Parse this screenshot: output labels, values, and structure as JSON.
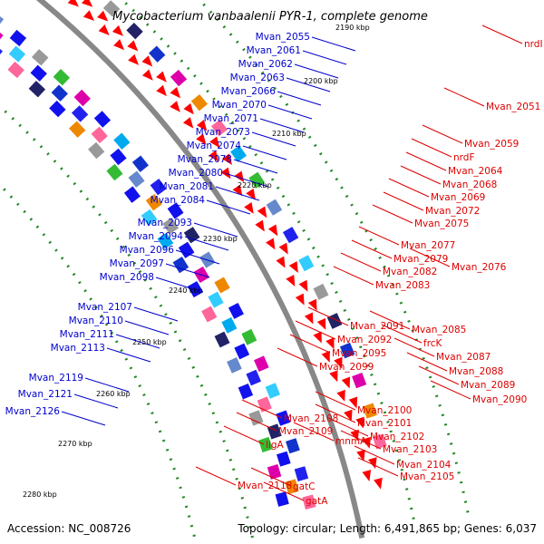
{
  "title": "Mycobacterium vanbaalenii PYR-1, complete genome",
  "footer": {
    "accession": "Accession: NC_008726",
    "summary": "Topology: circular; Length: 6,491,865 bp; Genes: 6,037"
  },
  "colors": {
    "left_label": "#0000cc",
    "right_label": "#dd0000",
    "backbone": "#888888",
    "dots": "#228822"
  },
  "ticks": [
    "2190 kbp",
    "2200 kbp",
    "2210 kbp",
    "2220 kbp",
    "2230 kbp",
    "2240 kbp",
    "2250 kbp",
    "2260 kbp",
    "2270 kbp",
    "2280 kbp"
  ],
  "left_labels": [
    "Mvan_2055",
    "Mvan_2061",
    "Mvan_2062",
    "Mvan_2063",
    "Mvan_2066",
    "Mvan_2070",
    "Mvan_2071",
    "Mvan_2073",
    "Mvan_2074",
    "Mvan_2078",
    "Mvan_2080",
    "Mvan_2081",
    "Mvan_2084",
    "Mvan_2093",
    "Mvan_2094",
    "Mvan_2096",
    "Mvan_2097",
    "Mvan_2098",
    "Mvan_2107",
    "Mvan_2110",
    "Mvan_2111",
    "Mvan_2113",
    "Mvan_2119",
    "Mvan_2121",
    "Mvan_2126"
  ],
  "right_labels": [
    "nrdI",
    "Mvan_2051",
    "Mvan_2059",
    "nrdF",
    "Mvan_2064",
    "Mvan_2068",
    "Mvan_2069",
    "Mvan_2072",
    "Mvan_2075",
    "Mvan_2077",
    "Mvan_2079",
    "Mvan_2076",
    "Mvan_2082",
    "Mvan_2083",
    "Mvan_2091",
    "Mvan_2085",
    "Mvan_2092",
    "frcK",
    "Mvan_2095",
    "Mvan_2087",
    "Mvan_2099",
    "Mvan_2088",
    "Mvan_2089",
    "Mvan_2090",
    "Mvan_2100",
    "Mvan_2108",
    "Mvan_2101",
    "Mvan_2109",
    "Mvan_2102",
    "mnmA",
    "ligA",
    "Mvan_2103",
    "Mvan_2104",
    "Mvan_2105",
    "Mvan_2118",
    "gatC",
    "gatA"
  ]
}
